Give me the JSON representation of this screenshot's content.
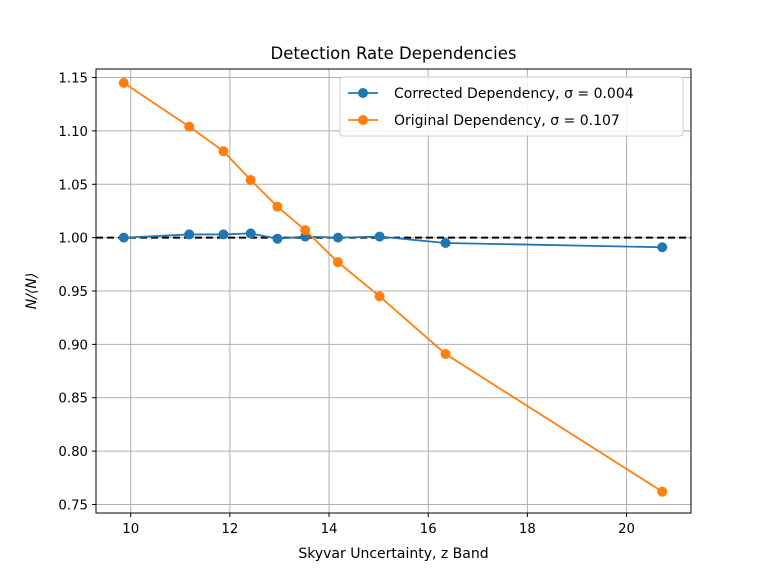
{
  "chart_data": {
    "type": "line",
    "title": "Detection Rate Dependencies",
    "xlabel": "Skyvar Uncertainty, z Band",
    "ylabel": "N/⟨N⟩",
    "xlim": [
      9.3,
      21.3
    ],
    "ylim": [
      0.742,
      1.158
    ],
    "xticks": [
      10,
      12,
      14,
      16,
      18,
      20
    ],
    "xtick_labels": [
      "10",
      "12",
      "14",
      "16",
      "18",
      "20"
    ],
    "yticks": [
      0.75,
      0.8,
      0.85,
      0.9,
      0.95,
      1.0,
      1.05,
      1.1,
      1.15
    ],
    "ytick_labels": [
      "0.75",
      "0.80",
      "0.85",
      "0.90",
      "0.95",
      "1.00",
      "1.05",
      "1.10",
      "1.15"
    ],
    "grid": true,
    "legend_position": "top-right",
    "reference_line": {
      "y": 1.0,
      "style": "dashed",
      "color": "#000000"
    },
    "series": [
      {
        "name": "Corrected Dependency, σ = 0.004",
        "color": "#1f77b4",
        "x": [
          9.86,
          11.18,
          11.87,
          12.42,
          12.96,
          13.52,
          14.18,
          15.02,
          16.35,
          20.72
        ],
        "y": [
          1.0,
          1.003,
          1.003,
          1.004,
          0.999,
          1.001,
          1.0,
          1.001,
          0.995,
          0.991
        ]
      },
      {
        "name": "Original Dependency, σ = 0.107",
        "color": "#ff7f0e",
        "x": [
          9.86,
          11.18,
          11.87,
          12.42,
          12.96,
          13.52,
          14.18,
          15.02,
          16.35,
          20.72
        ],
        "y": [
          1.145,
          1.104,
          1.081,
          1.054,
          1.029,
          1.007,
          0.977,
          0.945,
          0.891,
          0.762
        ]
      }
    ]
  }
}
